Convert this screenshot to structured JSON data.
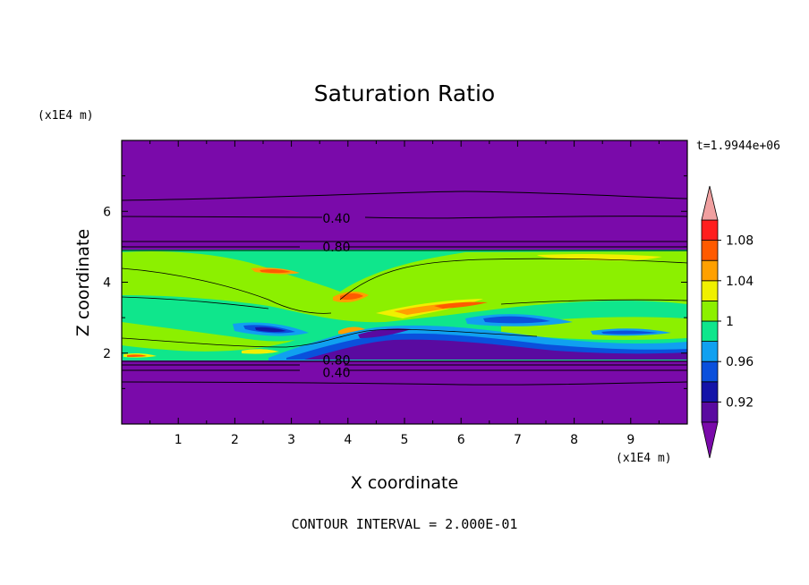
{
  "chart_data": {
    "type": "heatmap",
    "title": "Saturation Ratio",
    "xlabel": "X coordinate",
    "ylabel": "Z coordinate",
    "x_unit": "(x1E4 m)",
    "y_unit": "(x1E4 m)",
    "xlim": [
      0,
      10
    ],
    "ylim": [
      0,
      8
    ],
    "x_ticks": [
      1,
      2,
      3,
      4,
      5,
      6,
      7,
      8,
      9
    ],
    "y_ticks": [
      2,
      4,
      6
    ],
    "time_label": "t=1.9944e+06",
    "footer": "CONTOUR INTERVAL = 2.000E-01",
    "contour_labels": [
      {
        "text": "0.40",
        "x": 3.55,
        "y": 5.8
      },
      {
        "text": "0.80",
        "x": 3.55,
        "y": 5.0
      },
      {
        "text": "0.80",
        "x": 3.55,
        "y": 1.8
      },
      {
        "text": "0.40",
        "x": 3.55,
        "y": 1.45
      }
    ],
    "colorbar": {
      "levels": [
        0.9,
        0.92,
        0.94,
        0.96,
        0.98,
        1.0,
        1.02,
        1.04,
        1.06,
        1.08,
        1.1
      ],
      "tick_labels": [
        "0.92",
        "0.96",
        "1",
        "1.04",
        "1.08"
      ],
      "colors": [
        "#5a0aa0",
        "#1414a8",
        "#0a50dc",
        "#10a0f0",
        "#0fe68c",
        "#8cf000",
        "#f0f000",
        "#ffa000",
        "#ff5a00",
        "#ff1e1e"
      ],
      "under_color": "#7a0aaa",
      "over_color": "#f0a0a0"
    },
    "regions": {
      "dry_color": "#7a0aaa",
      "moist_layer": [
        1.8,
        4.95
      ]
    }
  }
}
